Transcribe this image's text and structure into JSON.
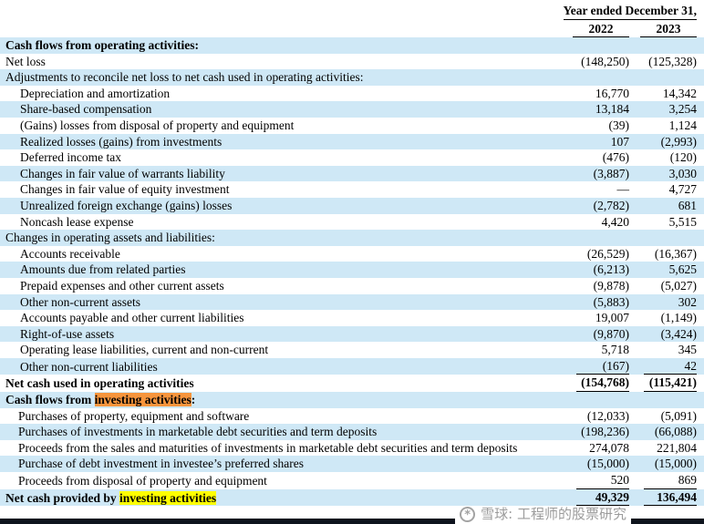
{
  "header": {
    "year_ended_label": "Year ended December 31,",
    "col_2022": "2022",
    "col_2023": "2023"
  },
  "colors": {
    "stripe_blue": "#cfe8f6",
    "highlight_orange": "#f6953c",
    "highlight_yellow": "#ffff00",
    "text": "#000000",
    "bottom_strip": "#0d131d"
  },
  "watermark": {
    "icon": "xueqiu-logo",
    "text": "雪球: 工程师的股票研究"
  },
  "rows": [
    {
      "label": "Cash flows from operating activities:",
      "bold": true,
      "indent": 0,
      "v2022": "",
      "v2023": "",
      "stripe": true
    },
    {
      "label": "Net loss",
      "indent": 0,
      "v2022": "(148,250)",
      "v2023": "(125,328)"
    },
    {
      "label": "Adjustments to reconcile net loss to net cash used in operating activities:",
      "indent": 0,
      "v2022": "",
      "v2023": "",
      "stripe": true
    },
    {
      "label": "Depreciation and amortization",
      "indent": 2,
      "v2022": "16,770",
      "v2023": "14,342"
    },
    {
      "label": "Share-based compensation",
      "indent": 2,
      "v2022": "13,184",
      "v2023": "3,254",
      "stripe": true
    },
    {
      "label": "(Gains) losses from disposal of property and equipment",
      "indent": 2,
      "v2022": "(39)",
      "v2023": "1,124"
    },
    {
      "label": "Realized losses (gains) from investments",
      "indent": 2,
      "v2022": "107",
      "v2023": "(2,993)",
      "stripe": true
    },
    {
      "label": "Deferred income tax",
      "indent": 2,
      "v2022": "(476)",
      "v2023": "(120)"
    },
    {
      "label": "Changes in fair value of warrants liability",
      "indent": 2,
      "v2022": "(3,887)",
      "v2023": "3,030",
      "stripe": true
    },
    {
      "label": "Changes in fair value of equity investment",
      "indent": 2,
      "v2022": "—",
      "v2023": "4,727"
    },
    {
      "label": "Unrealized foreign exchange (gains) losses",
      "indent": 2,
      "v2022": "(2,782)",
      "v2023": "681",
      "stripe": true
    },
    {
      "label": "Noncash lease expense",
      "indent": 2,
      "v2022": "4,420",
      "v2023": "5,515"
    },
    {
      "label": "Changes in operating assets and liabilities:",
      "indent": 0,
      "v2022": "",
      "v2023": "",
      "stripe": true
    },
    {
      "label": "Accounts receivable",
      "indent": 2,
      "v2022": "(26,529)",
      "v2023": "(16,367)"
    },
    {
      "label": "Amounts due from related parties",
      "indent": 2,
      "v2022": "(6,213)",
      "v2023": "5,625",
      "stripe": true
    },
    {
      "label": "Prepaid expenses and other current assets",
      "indent": 2,
      "v2022": "(9,878)",
      "v2023": "(5,027)"
    },
    {
      "label": "Other non-current assets",
      "indent": 2,
      "v2022": "(5,883)",
      "v2023": "302",
      "stripe": true
    },
    {
      "label": "Accounts payable and other current liabilities",
      "indent": 2,
      "v2022": "19,007",
      "v2023": "(1,149)"
    },
    {
      "label": "Right-of-use assets",
      "indent": 2,
      "v2022": "(9,870)",
      "v2023": "(3,424)",
      "stripe": true
    },
    {
      "label": "Operating lease liabilities, current and non-current",
      "indent": 2,
      "v2022": "5,718",
      "v2023": "345"
    },
    {
      "label": "Other non-current liabilities",
      "indent": 2,
      "v2022": "(167)",
      "v2023": "42",
      "stripe": true,
      "rule": true
    },
    {
      "label": "Net cash used in operating activities",
      "bold": true,
      "indent": 0,
      "v2022": "(154,768)",
      "v2023": "(115,421)",
      "rule": true
    },
    {
      "parts": [
        {
          "text": "Cash flows from "
        },
        {
          "text": "investing activities",
          "hl": "orange"
        },
        {
          "text": ":"
        }
      ],
      "bold": true,
      "indent": 0,
      "v2022": "",
      "v2023": "",
      "stripe": true
    },
    {
      "label": "Purchases of property, equipment and software",
      "indent": 1,
      "v2022": "(12,033)",
      "v2023": "(5,091)"
    },
    {
      "label": "Purchases of investments in marketable debt securities and term deposits",
      "indent": 1,
      "v2022": "(198,236)",
      "v2023": "(66,088)",
      "stripe": true
    },
    {
      "label": "Proceeds from the sales and maturities of investments in marketable debt securities and term deposits",
      "indent": 1,
      "v2022": "274,078",
      "v2023": "221,804",
      "wrap": true
    },
    {
      "label": "Purchase of debt investment in investee’s preferred shares",
      "indent": 1,
      "v2022": "(15,000)",
      "v2023": "(15,000)",
      "stripe": true
    },
    {
      "label": "Proceeds from disposal of property and equipment",
      "indent": 1,
      "v2022": "520",
      "v2023": "869",
      "rule": true
    },
    {
      "parts": [
        {
          "text": "Net cash provided by "
        },
        {
          "text": "investing activities",
          "hl": "yellow"
        }
      ],
      "bold": true,
      "indent": 0,
      "v2022": "49,329",
      "v2023": "136,494",
      "stripe": true,
      "rule": true
    }
  ]
}
